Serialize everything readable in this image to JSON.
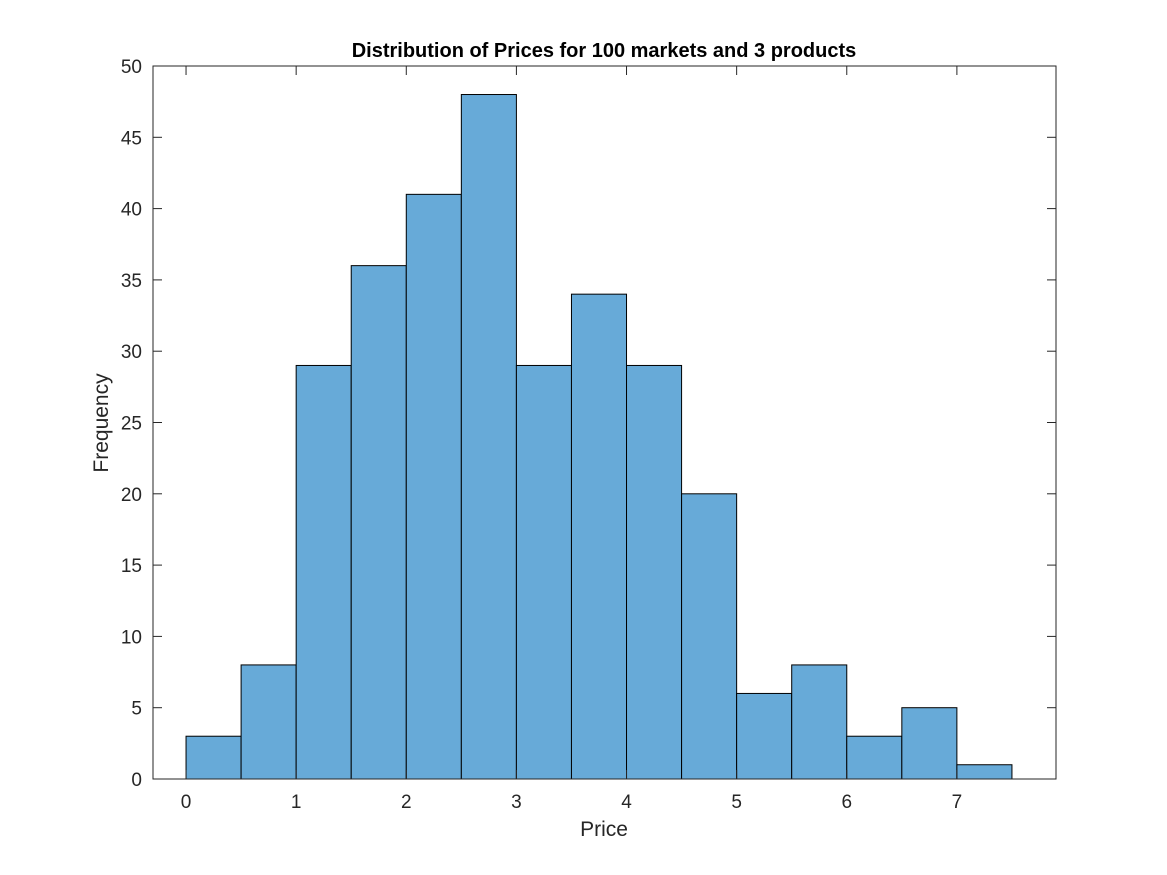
{
  "chart_data": {
    "type": "bar",
    "title": "Distribution of Prices for 100 markets and 3 products",
    "xlabel": "Price",
    "ylabel": "Frequency",
    "bin_edges": [
      0,
      0.5,
      1,
      1.5,
      2,
      2.5,
      3,
      3.5,
      4,
      4.5,
      5,
      5.5,
      6,
      6.5,
      7,
      7.5
    ],
    "values": [
      3,
      8,
      29,
      36,
      41,
      48,
      29,
      34,
      29,
      20,
      6,
      8,
      3,
      5,
      1
    ],
    "xlim": [
      -0.3,
      7.9
    ],
    "ylim": [
      0,
      50
    ],
    "xticks": [
      0,
      1,
      2,
      3,
      4,
      5,
      6,
      7
    ],
    "yticks": [
      0,
      5,
      10,
      15,
      20,
      25,
      30,
      35,
      40,
      45,
      50
    ],
    "grid": false,
    "bar_color": "#67aad8",
    "edge_color": "#000000"
  }
}
